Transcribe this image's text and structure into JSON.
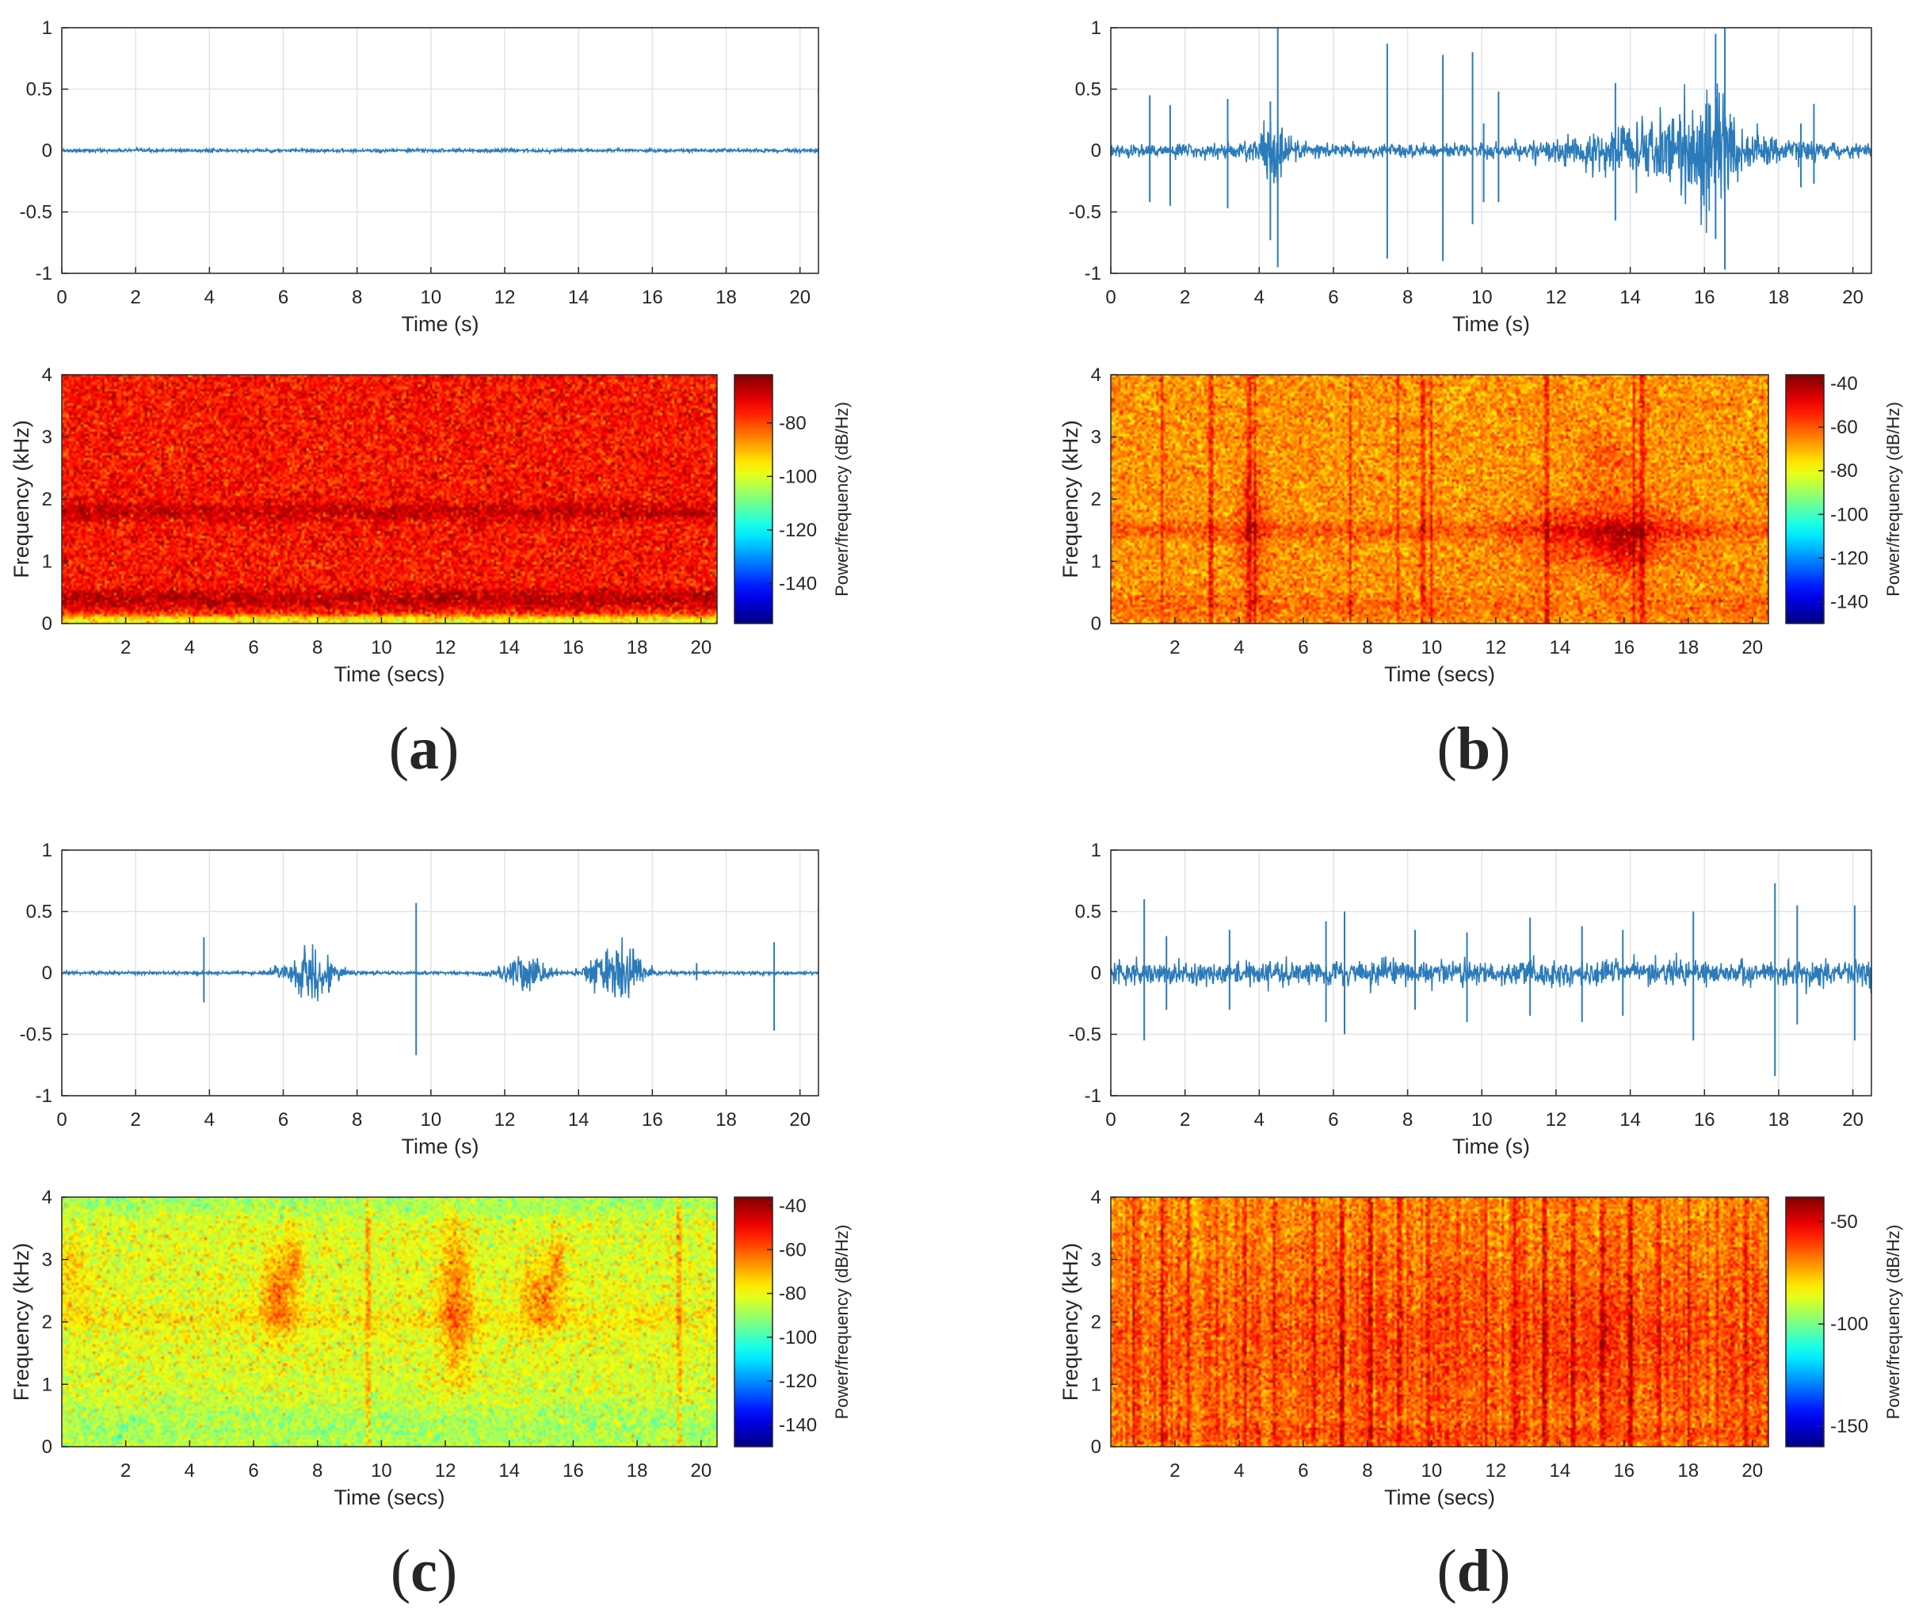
{
  "figure": {
    "panels": [
      {
        "label": "a",
        "waveform": {
          "xlabel": "Time (s)",
          "xlim": [
            0,
            20.5
          ],
          "ylim": [
            -1,
            1
          ],
          "xticks": [
            0,
            2,
            4,
            6,
            8,
            10,
            12,
            14,
            16,
            18,
            20
          ],
          "yticks": [
            1,
            0.5,
            0,
            -0.5,
            -1
          ],
          "color": "#2b7bba",
          "noise_amplitude": 0.012,
          "bursts": [],
          "spikes": []
        },
        "spectrogram": {
          "xlabel": "Time (secs)",
          "ylabel": "Frequency (kHz)",
          "xticks": [
            2,
            4,
            6,
            8,
            10,
            12,
            14,
            16,
            18,
            20
          ],
          "yticks": [
            0,
            1,
            2,
            3,
            4
          ],
          "ylim": [
            0,
            4
          ],
          "colorbar_label": "Power/frequency (dB/Hz)",
          "colorbar_ticks": [
            -80,
            -100,
            -120,
            -140
          ],
          "colorbar_range": [
            -155,
            -62
          ],
          "base_level": 0.86,
          "bands": [
            {
              "f": 1.8,
              "gain": 0.07,
              "width": 0.1
            },
            {
              "f": 0.4,
              "gain": 0.08,
              "width": 0.1
            },
            {
              "f": 0.05,
              "gain": -0.25,
              "width": 0.06
            }
          ],
          "blobs": [],
          "vlines": []
        }
      },
      {
        "label": "b",
        "waveform": {
          "xlabel": "Time (s)",
          "xlim": [
            0,
            20.5
          ],
          "ylim": [
            -1,
            1
          ],
          "xticks": [
            0,
            2,
            4,
            6,
            8,
            10,
            12,
            14,
            16,
            18,
            20
          ],
          "yticks": [
            1,
            0.5,
            0,
            -0.5,
            -1
          ],
          "color": "#2b7bba",
          "noise_amplitude": 0.05,
          "bursts": [
            {
              "center": 4.4,
              "width": 0.35,
              "amp": 0.15
            },
            {
              "center": 15.2,
              "width": 1.6,
              "amp": 0.22
            },
            {
              "center": 16.2,
              "width": 0.35,
              "amp": 0.3
            }
          ],
          "spikes": [
            {
              "t": 1.05,
              "up": 0.45,
              "down": -0.42
            },
            {
              "t": 1.6,
              "up": 0.37,
              "down": -0.45
            },
            {
              "t": 3.15,
              "up": 0.42,
              "down": -0.47
            },
            {
              "t": 4.3,
              "up": 0.4,
              "down": -0.73
            },
            {
              "t": 4.5,
              "up": 1.0,
              "down": -0.95
            },
            {
              "t": 7.45,
              "up": 0.87,
              "down": -0.88
            },
            {
              "t": 8.95,
              "up": 0.78,
              "down": -0.9
            },
            {
              "t": 9.75,
              "up": 0.8,
              "down": -0.6
            },
            {
              "t": 10.05,
              "up": 0.22,
              "down": -0.42
            },
            {
              "t": 10.45,
              "up": 0.48,
              "down": -0.42
            },
            {
              "t": 13.6,
              "up": 0.55,
              "down": -0.57
            },
            {
              "t": 16.3,
              "up": 0.95,
              "down": -0.72
            },
            {
              "t": 16.55,
              "up": 1.0,
              "down": -0.97
            },
            {
              "t": 18.6,
              "up": 0.22,
              "down": -0.3
            },
            {
              "t": 18.95,
              "up": 0.38,
              "down": -0.27
            }
          ]
        },
        "spectrogram": {
          "xlabel": "Time (secs)",
          "ylabel": "Frequency (kHz)",
          "xticks": [
            2,
            4,
            6,
            8,
            10,
            12,
            14,
            16,
            18,
            20
          ],
          "yticks": [
            0,
            1,
            2,
            3,
            4
          ],
          "ylim": [
            0,
            4
          ],
          "colorbar_label": "Power/frequency (dB/Hz)",
          "colorbar_ticks": [
            -40,
            -60,
            -80,
            -100,
            -120,
            -140
          ],
          "colorbar_range": [
            -150,
            -36
          ],
          "base_level": 0.73,
          "bands": [
            {
              "f": 1.5,
              "gain": 0.06,
              "width": 0.1
            },
            {
              "f": 0.3,
              "gain": 0.04,
              "width": 0.15
            }
          ],
          "blobs": [
            {
              "t": 15.3,
              "f": 1.45,
              "st": 1.6,
              "sf": 0.35,
              "gain": 0.13
            },
            {
              "t": 16.0,
              "f": 1.2,
              "st": 0.5,
              "sf": 0.3,
              "gain": 0.1
            },
            {
              "t": 4.4,
              "f": 1.5,
              "st": 0.3,
              "sf": 0.7,
              "gain": 0.09
            },
            {
              "t": 15.5,
              "f": 2.6,
              "st": 0.6,
              "sf": 0.3,
              "gain": 0.05
            }
          ],
          "vlines": [
            1.6,
            3.1,
            4.3,
            4.5,
            7.45,
            8.95,
            9.75,
            10.0,
            13.6,
            16.3,
            16.55
          ]
        }
      },
      {
        "label": "c",
        "waveform": {
          "xlabel": "Time (s)",
          "xlim": [
            0,
            20.5
          ],
          "ylim": [
            -1,
            1
          ],
          "xticks": [
            0,
            2,
            4,
            6,
            8,
            10,
            12,
            14,
            16,
            18,
            20
          ],
          "yticks": [
            1,
            0.5,
            0,
            -0.5,
            -1
          ],
          "color": "#2b7bba",
          "noise_amplitude": 0.012,
          "bursts": [
            {
              "center": 6.7,
              "width": 0.45,
              "amp": 0.25
            },
            {
              "center": 12.5,
              "width": 0.4,
              "amp": 0.15
            },
            {
              "center": 15.0,
              "width": 0.45,
              "amp": 0.25
            }
          ],
          "spikes": [
            {
              "t": 3.85,
              "up": 0.29,
              "down": -0.24
            },
            {
              "t": 9.6,
              "up": 0.57,
              "down": -0.67
            },
            {
              "t": 17.2,
              "up": 0.08,
              "down": -0.06
            },
            {
              "t": 19.3,
              "up": 0.25,
              "down": -0.47
            }
          ]
        },
        "spectrogram": {
          "xlabel": "Time (secs)",
          "ylabel": "Frequency (kHz)",
          "xticks": [
            2,
            4,
            6,
            8,
            10,
            12,
            14,
            16,
            18,
            20
          ],
          "yticks": [
            0,
            1,
            2,
            3,
            4
          ],
          "ylim": [
            0,
            4
          ],
          "colorbar_label": "Power/frequency (dB/Hz)",
          "colorbar_ticks": [
            -40,
            -60,
            -80,
            -100,
            -120,
            -140
          ],
          "colorbar_range": [
            -150,
            -36
          ],
          "base_level": 0.6,
          "bands": [
            {
              "f": 2.05,
              "gain": 0.04,
              "width": 0.15
            },
            {
              "f": 0.3,
              "gain": -0.06,
              "width": 0.35
            },
            {
              "f": 3.9,
              "gain": -0.06,
              "width": 0.15
            }
          ],
          "blobs": [
            {
              "t": 6.8,
              "f": 2.4,
              "st": 0.35,
              "sf": 0.45,
              "gain": 0.16
            },
            {
              "t": 7.3,
              "f": 3.0,
              "st": 0.2,
              "sf": 0.3,
              "gain": 0.12
            },
            {
              "t": 12.3,
              "f": 2.3,
              "st": 0.35,
              "sf": 0.8,
              "gain": 0.16
            },
            {
              "t": 15.0,
              "f": 2.4,
              "st": 0.45,
              "sf": 0.35,
              "gain": 0.14
            },
            {
              "t": 15.5,
              "f": 3.0,
              "st": 0.2,
              "sf": 0.25,
              "gain": 0.11
            },
            {
              "t": 0.3,
              "f": 2.7,
              "st": 0.4,
              "sf": 0.4,
              "gain": 0.07
            }
          ],
          "vlines": [
            9.6,
            19.3
          ]
        }
      },
      {
        "label": "d",
        "waveform": {
          "xlabel": "Time (s)",
          "xlim": [
            0,
            20.5
          ],
          "ylim": [
            -1,
            1
          ],
          "xticks": [
            0,
            2,
            4,
            6,
            8,
            10,
            12,
            14,
            16,
            18,
            20
          ],
          "yticks": [
            1,
            0.5,
            0,
            -0.5,
            -1
          ],
          "color": "#2b7bba",
          "noise_amplitude": 0.09,
          "bursts": [],
          "spikes": [
            {
              "t": 0.9,
              "up": 0.6,
              "down": -0.55
            },
            {
              "t": 1.5,
              "up": 0.3,
              "down": -0.3
            },
            {
              "t": 3.2,
              "up": 0.35,
              "down": -0.3
            },
            {
              "t": 5.8,
              "up": 0.42,
              "down": -0.4
            },
            {
              "t": 6.3,
              "up": 0.5,
              "down": -0.5
            },
            {
              "t": 8.2,
              "up": 0.35,
              "down": -0.3
            },
            {
              "t": 9.6,
              "up": 0.33,
              "down": -0.4
            },
            {
              "t": 11.3,
              "up": 0.45,
              "down": -0.35
            },
            {
              "t": 12.7,
              "up": 0.38,
              "down": -0.4
            },
            {
              "t": 13.8,
              "up": 0.35,
              "down": -0.35
            },
            {
              "t": 15.7,
              "up": 0.5,
              "down": -0.55
            },
            {
              "t": 17.9,
              "up": 0.73,
              "down": -0.84
            },
            {
              "t": 18.5,
              "up": 0.55,
              "down": -0.42
            },
            {
              "t": 20.05,
              "up": 0.55,
              "down": -0.55
            }
          ]
        },
        "spectrogram": {
          "xlabel": "Time (secs)",
          "ylabel": "Frequency (kHz)",
          "xticks": [
            2,
            4,
            6,
            8,
            10,
            12,
            14,
            16,
            18,
            20
          ],
          "yticks": [
            0,
            1,
            2,
            3,
            4
          ],
          "ylim": [
            0,
            4
          ],
          "colorbar_label": "Power/frequency (dB/Hz)",
          "colorbar_ticks": [
            -50,
            -100,
            -150
          ],
          "colorbar_range": [
            -160,
            -38
          ],
          "base_level": 0.74,
          "bands": [
            {
              "f": 1.6,
              "gain": 0.05,
              "width": 1.0
            },
            {
              "f": 0.2,
              "gain": 0.04,
              "width": 0.1
            }
          ],
          "blobs": [
            {
              "t": 15.5,
              "f": 1.7,
              "st": 2.0,
              "sf": 0.8,
              "gain": 0.03
            }
          ],
          "vlines": [
            0.7,
            1.6,
            2.4,
            3.3,
            4.2,
            5.1,
            6.3,
            7.2,
            8.1,
            9.0,
            9.9,
            10.8,
            11.7,
            12.6,
            13.5,
            14.4,
            15.3,
            16.2,
            17.1,
            18.0,
            18.9,
            19.8
          ]
        }
      }
    ]
  }
}
